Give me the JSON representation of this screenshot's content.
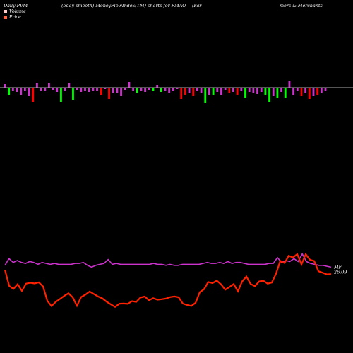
{
  "header": {
    "left": "Daily PVM",
    "center": "(5day smooth) MoneyFlowIndex(TM) charts for FMAO",
    "right_part1": "(Far",
    "right_part2": "mers & Merchants"
  },
  "colors": {
    "background": "#000000",
    "positive": "#00ff00",
    "negative": "#ff0000",
    "neutral": "#cc33cc",
    "mfi_line": "#cc33cc",
    "price_line": "#ff2200",
    "price_line_light": "#ff7744",
    "zero_line": "#aaaaaa",
    "volume_legend": "#ffcccc",
    "price_legend": "#ff6644"
  },
  "chart_data": {
    "type": "line",
    "legend": [
      {
        "label": "Volume",
        "color": "#ffcccc"
      },
      {
        "label": "Price",
        "color": "#ff6644"
      }
    ],
    "histogram": {
      "values": [
        5,
        -10,
        -5,
        -6,
        -10,
        -5,
        -12,
        -20,
        6,
        -5,
        -5,
        7,
        -3,
        -6,
        -20,
        -5,
        6,
        -18,
        -4,
        -7,
        -5,
        -6,
        -5,
        -5,
        -10,
        -2,
        -16,
        -8,
        -8,
        -12,
        -4,
        8,
        -5,
        -8,
        -5,
        -6,
        -3,
        -5,
        4,
        -7,
        -5,
        -8,
        -5,
        -2,
        -16,
        -10,
        -8,
        -12,
        -5,
        -8,
        -22,
        -10,
        -10,
        -6,
        -10,
        -4,
        -8,
        -6,
        -10,
        -5,
        -15,
        -7,
        -8,
        -9,
        -6,
        -10,
        -20,
        -12,
        -15,
        -6,
        -15,
        9,
        -10,
        -5,
        -12,
        -8,
        -16,
        -12,
        -10,
        -8,
        -5
      ],
      "colors": [
        "m",
        "g",
        "m",
        "m",
        "m",
        "m",
        "m",
        "r",
        "m",
        "m",
        "m",
        "m",
        "m",
        "m",
        "g",
        "m",
        "m",
        "g",
        "m",
        "m",
        "m",
        "m",
        "m",
        "m",
        "r",
        "m",
        "r",
        "m",
        "m",
        "m",
        "m",
        "m",
        "m",
        "g",
        "m",
        "m",
        "m",
        "g",
        "m",
        "g",
        "m",
        "m",
        "m",
        "m",
        "r",
        "r",
        "m",
        "r",
        "m",
        "m",
        "g",
        "m",
        "g",
        "m",
        "m",
        "m",
        "r",
        "m",
        "r",
        "m",
        "g",
        "m",
        "m",
        "m",
        "m",
        "g",
        "g",
        "m",
        "g",
        "m",
        "g",
        "m",
        "m",
        "m",
        "r",
        "m",
        "r",
        "m",
        "r",
        "m",
        "m"
      ]
    },
    "mfi": {
      "name": "MFI",
      "values": [
        55,
        62,
        58,
        60,
        58,
        57,
        59,
        58,
        56,
        58,
        57,
        56,
        57,
        56,
        56,
        56,
        56,
        57,
        57,
        58,
        55,
        53,
        55,
        56,
        57,
        61,
        56,
        57,
        56,
        56,
        56,
        56,
        56,
        56,
        56,
        56,
        57,
        56,
        56,
        55,
        56,
        55,
        55,
        56,
        56,
        56,
        56,
        56,
        57,
        58,
        57,
        57,
        58,
        57,
        59,
        57,
        58,
        58,
        57,
        56,
        56,
        56,
        56,
        56,
        57,
        57,
        63,
        58,
        60,
        59,
        62,
        59,
        67,
        59,
        57,
        56,
        55,
        55,
        54,
        53
      ],
      "last_label": "MF"
    },
    "price": {
      "name": "Price",
      "values": [
        50.2,
        33.5,
        30.3,
        35.2,
        28.2,
        35.8,
        36.7,
        35.9,
        37.1,
        32.8,
        17.8,
        12.2,
        16.7,
        19.7,
        22.9,
        25.6,
        21.3,
        12.6,
        21.7,
        24.2,
        27.5,
        24.9,
        22.2,
        20.3,
        16.8,
        14.0,
        11.3,
        14.7,
        14.9,
        14.5,
        17.4,
        16.6,
        21.2,
        22.2,
        18.4,
        20.5,
        18.9,
        19.4,
        20.1,
        21.6,
        22.3,
        21.5,
        14.8,
        13.4,
        12.4,
        15.6,
        26.8,
        29.9,
        37.5,
        36.4,
        38.9,
        35.1,
        29.4,
        32.2,
        35.3,
        27.7,
        38.1,
        43.2,
        35.4,
        33.1,
        38.0,
        38.8,
        35.8,
        36.9,
        46.2,
        59.6,
        57.3,
        65.0,
        63.2,
        66.7,
        55.9,
        66.6,
        60.8,
        59.5,
        48.8,
        47.2,
        45.5,
        45.8
      ],
      "last_label": "26.09"
    }
  }
}
